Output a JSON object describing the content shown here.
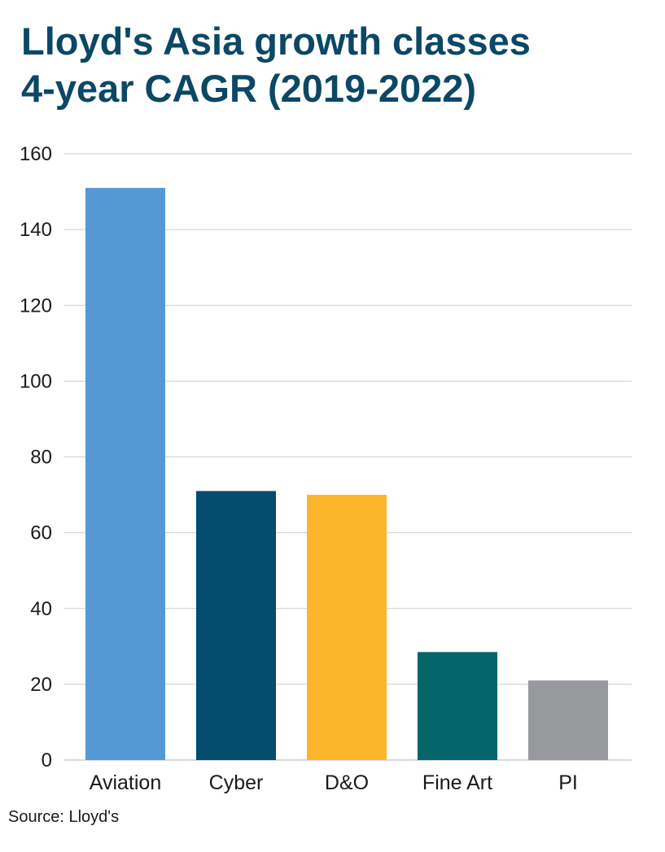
{
  "chart_data": {
    "type": "bar",
    "title": [
      "Lloyd's Asia growth classes",
      "4-year CAGR (2019-2022)"
    ],
    "categories": [
      "Aviation",
      "Cyber",
      "D&O",
      "Fine Art",
      "PI"
    ],
    "values": [
      151,
      71,
      70,
      28.5,
      21
    ],
    "colors": [
      "#5599d4",
      "#044d6e",
      "#fbb62b",
      "#04646a",
      "#98999d"
    ],
    "ylim": [
      0,
      160
    ],
    "yticks": [
      0,
      20,
      40,
      60,
      80,
      100,
      120,
      140,
      160
    ],
    "grid": true,
    "xlabel": "",
    "ylabel": "",
    "source": "Source: Lloyd's"
  }
}
